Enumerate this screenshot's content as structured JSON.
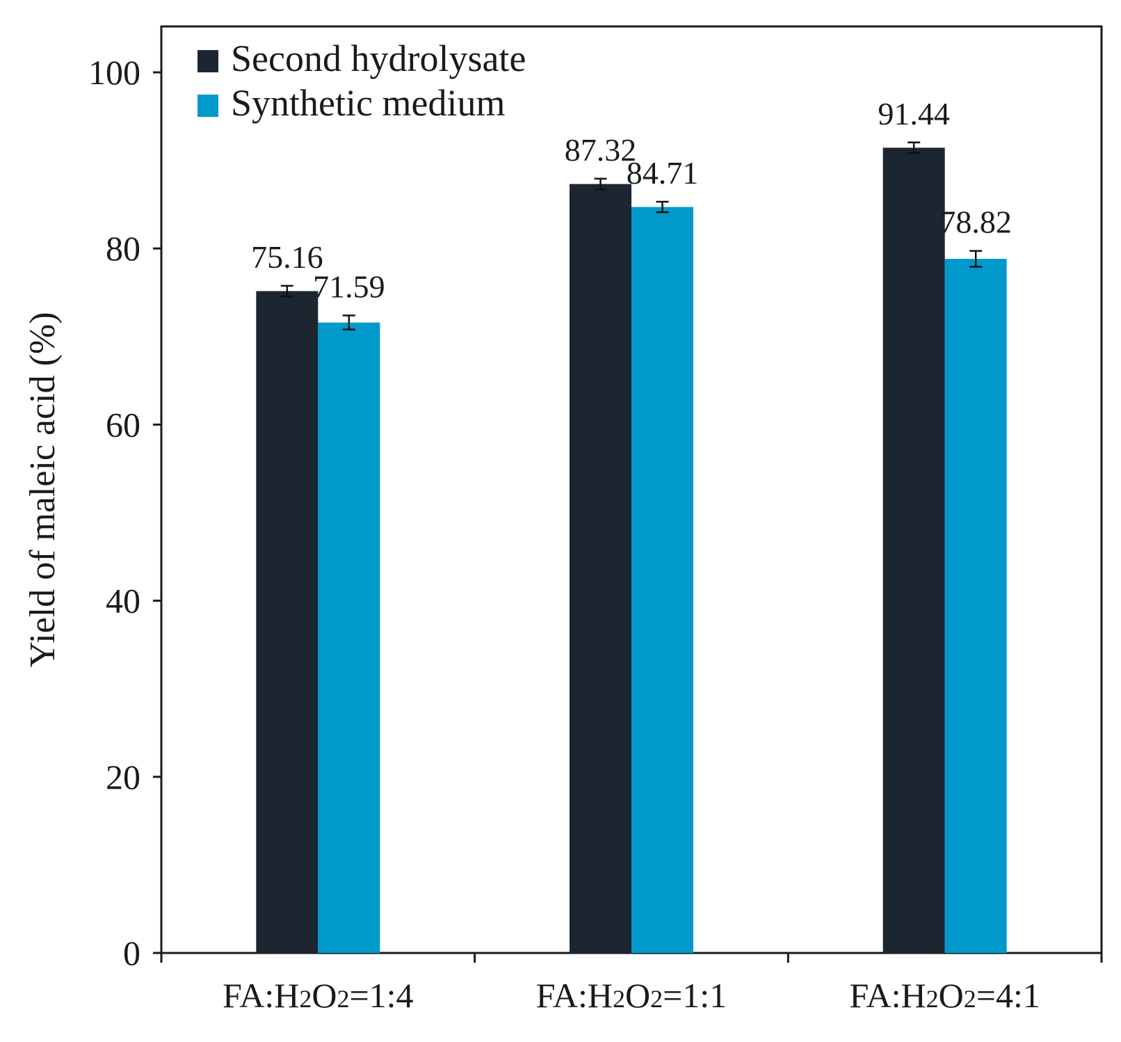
{
  "chart_data": {
    "type": "bar",
    "title": "",
    "xlabel": "",
    "ylabel": "Yield of maleic acid (%)",
    "ylim": [
      0,
      105
    ],
    "yticks": [
      0,
      20,
      40,
      60,
      80,
      100
    ],
    "grid": false,
    "legend_position": "top-left",
    "categories": [
      {
        "prefix": "FA:H",
        "sub1": "2",
        "mid": "O",
        "sub2": "2",
        "suffix": "=1:4"
      },
      {
        "prefix": "FA:H",
        "sub1": "2",
        "mid": "O",
        "sub2": "2",
        "suffix": "=1:1"
      },
      {
        "prefix": "FA:H",
        "sub1": "2",
        "mid": "O",
        "sub2": "2",
        "suffix": "=4:1"
      }
    ],
    "series": [
      {
        "name": "Second hydrolysate",
        "color": "#1b2631",
        "values": [
          75.16,
          87.32,
          91.44
        ],
        "labels": [
          "75.16",
          "87.32",
          "91.44"
        ],
        "errors": [
          0.6,
          0.6,
          0.6
        ]
      },
      {
        "name": "Synthetic medium",
        "color": "#0099cc",
        "values": [
          71.59,
          84.71,
          78.82
        ],
        "labels": [
          "71.59",
          "84.71",
          "78.82"
        ],
        "errors": [
          0.8,
          0.6,
          0.9
        ]
      }
    ]
  }
}
